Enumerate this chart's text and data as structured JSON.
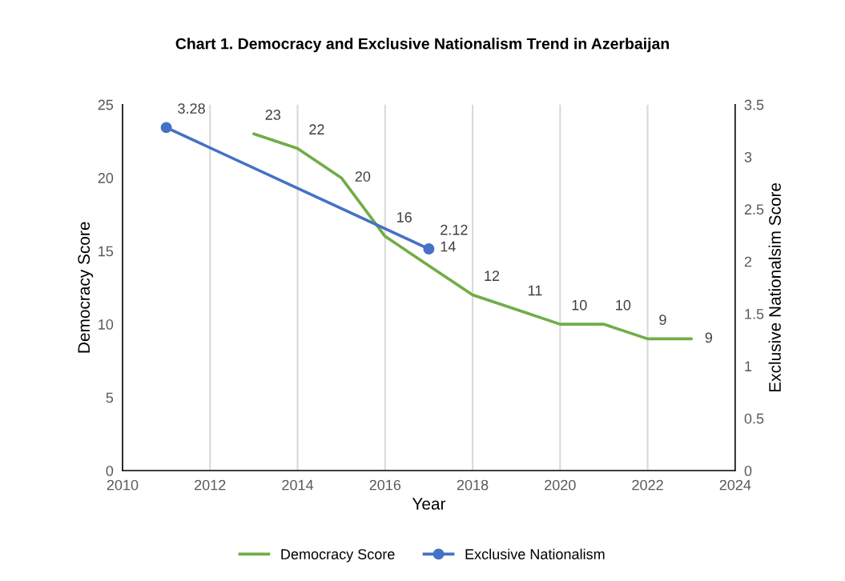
{
  "chart_data": {
    "type": "line",
    "title": "Chart 1. Democracy and Exclusive Nationalism Trend in Azerbaijan",
    "xlabel": "Year",
    "ylabel": "Democracy Score",
    "y2label": "Exclusive Nationalsim Score",
    "series": [
      {
        "name": "Democracy Score",
        "color": "#70ad47",
        "marker": "none",
        "x": [
          2013,
          2014,
          2015,
          2016,
          2017,
          2018,
          2019,
          2020,
          2021,
          2022,
          2023
        ],
        "values": [
          23,
          22,
          20,
          16,
          14,
          12,
          11,
          10,
          10,
          9,
          9
        ]
      },
      {
        "name": "Exclusive Nationalism",
        "color": "#4472c4",
        "marker": "circle",
        "axis": "y2",
        "x": [
          2011,
          2017
        ],
        "values": [
          3.28,
          2.12
        ]
      }
    ],
    "xlim": [
      2010,
      2024
    ],
    "xticks": [
      2010,
      2012,
      2014,
      2016,
      2018,
      2020,
      2022,
      2024
    ],
    "ylim": [
      0,
      25
    ],
    "yticks": [
      0,
      5,
      10,
      15,
      20,
      25
    ],
    "y2lim": [
      0,
      3.5
    ],
    "y2ticks": [
      0,
      0.5,
      1,
      1.5,
      2,
      2.5,
      3,
      3.5
    ],
    "data_labels": true,
    "grid": "x",
    "legend": "bottom",
    "line_style": "solid"
  }
}
